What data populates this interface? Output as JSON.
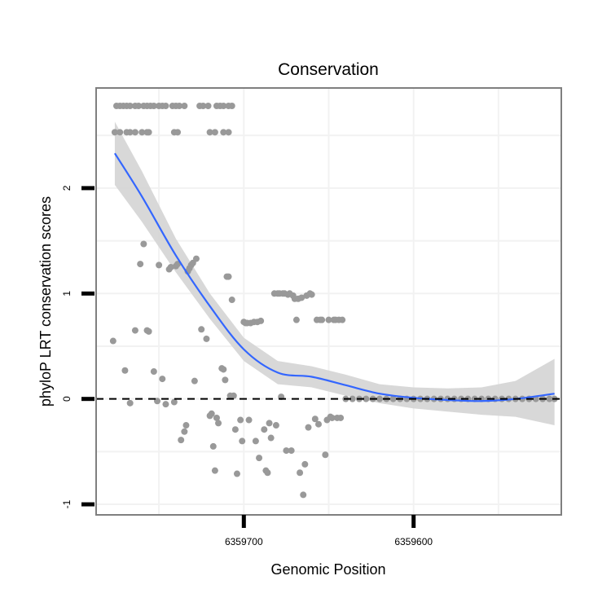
{
  "chart_data": {
    "type": "scatter",
    "title": "Conservation",
    "xlabel": "Genomic Position",
    "ylabel": "phyloP LRT conservation scores",
    "x_reversed": true,
    "xlim": [
      6359787,
      6359513
    ],
    "ylim": [
      -1.1,
      2.95
    ],
    "x_ticks": [
      6359700,
      6359600
    ],
    "y_ticks": [
      -1,
      0,
      1,
      2
    ],
    "reference_line": {
      "y": 0,
      "style": "dashed"
    },
    "colors": {
      "points": "#999999",
      "smooth_line": "#3366ff",
      "confidence_band": "#d4d4d4",
      "panel_border": "#7f7f7f",
      "gridlines": "#f2f2f2",
      "reference_line": "#000000"
    },
    "points": [
      [
        6359775,
        2.78
      ],
      [
        6359773,
        2.78
      ],
      [
        6359771,
        2.78
      ],
      [
        6359769,
        2.78
      ],
      [
        6359767,
        2.78
      ],
      [
        6359764,
        2.78
      ],
      [
        6359762,
        2.78
      ],
      [
        6359759,
        2.78
      ],
      [
        6359757,
        2.78
      ],
      [
        6359755,
        2.78
      ],
      [
        6359753,
        2.78
      ],
      [
        6359750,
        2.78
      ],
      [
        6359748,
        2.78
      ],
      [
        6359746,
        2.78
      ],
      [
        6359742,
        2.78
      ],
      [
        6359740,
        2.78
      ],
      [
        6359738,
        2.78
      ],
      [
        6359735,
        2.78
      ],
      [
        6359726,
        2.78
      ],
      [
        6359724,
        2.78
      ],
      [
        6359721,
        2.78
      ],
      [
        6359716,
        2.78
      ],
      [
        6359714,
        2.78
      ],
      [
        6359712,
        2.78
      ],
      [
        6359709,
        2.78
      ],
      [
        6359707,
        2.78
      ],
      [
        6359776,
        2.53
      ],
      [
        6359773,
        2.53
      ],
      [
        6359769,
        2.53
      ],
      [
        6359767,
        2.53
      ],
      [
        6359764,
        2.53
      ],
      [
        6359760,
        2.53
      ],
      [
        6359757,
        2.53
      ],
      [
        6359756,
        2.53
      ],
      [
        6359741,
        2.53
      ],
      [
        6359739,
        2.53
      ],
      [
        6359720,
        2.53
      ],
      [
        6359717,
        2.53
      ],
      [
        6359712,
        2.53
      ],
      [
        6359709,
        2.53
      ],
      [
        6359777,
        0.55
      ],
      [
        6359770,
        0.27
      ],
      [
        6359767,
        -0.04
      ],
      [
        6359764,
        0.65
      ],
      [
        6359761,
        1.28
      ],
      [
        6359759,
        1.47
      ],
      [
        6359757,
        0.65
      ],
      [
        6359756,
        0.64
      ],
      [
        6359753,
        0.26
      ],
      [
        6359751,
        -0.02
      ],
      [
        6359750,
        1.27
      ],
      [
        6359748,
        0.19
      ],
      [
        6359746,
        -0.05
      ],
      [
        6359744,
        1.23
      ],
      [
        6359743,
        1.25
      ],
      [
        6359741,
        -0.03
      ],
      [
        6359740,
        1.26
      ],
      [
        6359739,
        1.28
      ],
      [
        6359737,
        -0.39
      ],
      [
        6359735,
        -0.31
      ],
      [
        6359733,
        1.21
      ],
      [
        6359732,
        1.24
      ],
      [
        6359731,
        1.27
      ],
      [
        6359730,
        1.29
      ],
      [
        6359734,
        -0.25
      ],
      [
        6359728,
        1.33
      ],
      [
        6359729,
        0.17
      ],
      [
        6359725,
        0.66
      ],
      [
        6359722,
        0.57
      ],
      [
        6359720,
        -0.16
      ],
      [
        6359719,
        -0.14
      ],
      [
        6359718,
        -0.45
      ],
      [
        6359717,
        -0.68
      ],
      [
        6359716,
        -0.18
      ],
      [
        6359715,
        -0.23
      ],
      [
        6359713,
        0.29
      ],
      [
        6359712,
        0.28
      ],
      [
        6359711,
        0.18
      ],
      [
        6359710,
        1.16
      ],
      [
        6359709,
        1.16
      ],
      [
        6359708,
        0.03
      ],
      [
        6359707,
        0.94
      ],
      [
        6359706,
        0.03
      ],
      [
        6359705,
        -0.29
      ],
      [
        6359704,
        -0.71
      ],
      [
        6359702,
        -0.2
      ],
      [
        6359701,
        -0.4
      ],
      [
        6359700,
        0.73
      ],
      [
        6359699,
        0.72
      ],
      [
        6359698,
        0.72
      ],
      [
        6359697,
        -0.2
      ],
      [
        6359696,
        0.72
      ],
      [
        6359694,
        0.73
      ],
      [
        6359693,
        -0.4
      ],
      [
        6359692,
        0.73
      ],
      [
        6359691,
        -0.56
      ],
      [
        6359690,
        0.74
      ],
      [
        6359688,
        -0.29
      ],
      [
        6359687,
        -0.68
      ],
      [
        6359686,
        -0.7
      ],
      [
        6359685,
        -0.23
      ],
      [
        6359684,
        -0.37
      ],
      [
        6359682,
        1.0
      ],
      [
        6359681,
        -0.25
      ],
      [
        6359680,
        1.0
      ],
      [
        6359679,
        1.0
      ],
      [
        6359678,
        0.02
      ],
      [
        6359677,
        1.0
      ],
      [
        6359676,
        1.0
      ],
      [
        6359675,
        -0.49
      ],
      [
        6359674,
        0.99
      ],
      [
        6359673,
        1.0
      ],
      [
        6359672,
        -0.49
      ],
      [
        6359671,
        0.98
      ],
      [
        6359670,
        0.95
      ],
      [
        6359669,
        0.75
      ],
      [
        6359668,
        0.95
      ],
      [
        6359667,
        -0.7
      ],
      [
        6359666,
        0.96
      ],
      [
        6359665,
        -0.91
      ],
      [
        6359664,
        -0.62
      ],
      [
        6359663,
        0.98
      ],
      [
        6359662,
        -0.27
      ],
      [
        6359661,
        1.0
      ],
      [
        6359660,
        0.99
      ],
      [
        6359658,
        -0.19
      ],
      [
        6359657,
        0.75
      ],
      [
        6359656,
        -0.24
      ],
      [
        6359655,
        0.75
      ],
      [
        6359654,
        0.75
      ],
      [
        6359652,
        -0.53
      ],
      [
        6359651,
        -0.2
      ],
      [
        6359650,
        0.75
      ],
      [
        6359649,
        -0.17
      ],
      [
        6359648,
        -0.18
      ],
      [
        6359647,
        0.75
      ],
      [
        6359646,
        0.75
      ],
      [
        6359645,
        -0.18
      ],
      [
        6359644,
        0.75
      ],
      [
        6359643,
        -0.18
      ],
      [
        6359642,
        0.75
      ],
      [
        6359640,
        0.0
      ],
      [
        6359636,
        0.0
      ],
      [
        6359632,
        0.0
      ],
      [
        6359628,
        0.0
      ],
      [
        6359624,
        0.0
      ],
      [
        6359620,
        0.0
      ],
      [
        6359616,
        0.0
      ],
      [
        6359612,
        0.0
      ],
      [
        6359608,
        0.0
      ],
      [
        6359604,
        0.0
      ],
      [
        6359600,
        0.0
      ],
      [
        6359596,
        0.0
      ],
      [
        6359592,
        0.0
      ],
      [
        6359588,
        0.0
      ],
      [
        6359584,
        0.0
      ],
      [
        6359580,
        0.0
      ],
      [
        6359576,
        0.0
      ],
      [
        6359572,
        0.0
      ],
      [
        6359568,
        0.0
      ],
      [
        6359564,
        0.0
      ],
      [
        6359560,
        0.0
      ],
      [
        6359556,
        0.0
      ],
      [
        6359552,
        0.0
      ],
      [
        6359548,
        0.0
      ],
      [
        6359544,
        0.0
      ],
      [
        6359540,
        0.0
      ],
      [
        6359536,
        0.0
      ],
      [
        6359532,
        0.0
      ],
      [
        6359528,
        0.0
      ],
      [
        6359524,
        0.0
      ],
      [
        6359520,
        0.0
      ],
      [
        6359517,
        0.0
      ]
    ],
    "smooth": {
      "x": [
        6359776,
        6359760,
        6359740,
        6359720,
        6359700,
        6359680,
        6359660,
        6359640,
        6359620,
        6359600,
        6359580,
        6359560,
        6359540,
        6359517
      ],
      "y": [
        2.33,
        1.92,
        1.36,
        0.88,
        0.47,
        0.25,
        0.21,
        0.13,
        0.05,
        0.01,
        -0.01,
        -0.02,
        0.0,
        0.05
      ],
      "lower": [
        2.03,
        1.68,
        1.2,
        0.76,
        0.36,
        0.14,
        0.11,
        0.03,
        -0.04,
        -0.09,
        -0.12,
        -0.15,
        -0.17,
        -0.25
      ],
      "upper": [
        2.63,
        2.16,
        1.52,
        1.0,
        0.58,
        0.36,
        0.31,
        0.23,
        0.14,
        0.11,
        0.1,
        0.11,
        0.17,
        0.38
      ]
    }
  }
}
